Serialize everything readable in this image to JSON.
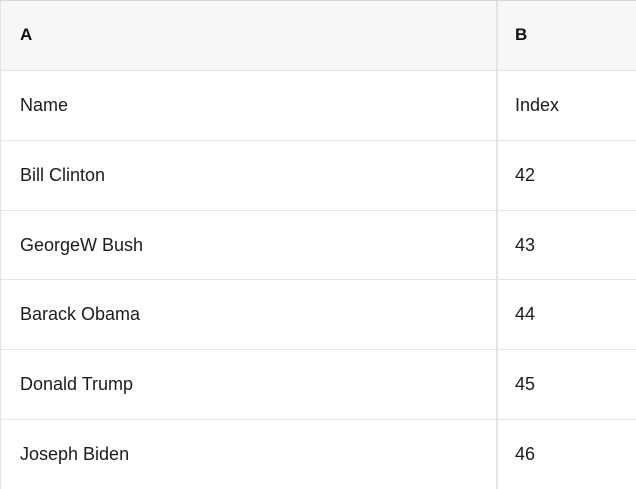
{
  "table": {
    "column_headers": [
      {
        "label": "A"
      },
      {
        "label": "B"
      }
    ],
    "field_header_row": {
      "name": "Name",
      "index": "Index"
    },
    "rows": [
      {
        "name": "Bill Clinton",
        "index": "42"
      },
      {
        "name": "GeorgeW Bush",
        "index": "43"
      },
      {
        "name": "Barack Obama",
        "index": "44"
      },
      {
        "name": "Donald Trump",
        "index": "45"
      },
      {
        "name": "Joseph Biden",
        "index": "46"
      }
    ],
    "colors": {
      "header_background": "#f7f7f7",
      "border": "#e4e4e4",
      "top_border": "#d6d6d6",
      "text": "#1c1c1e"
    }
  }
}
